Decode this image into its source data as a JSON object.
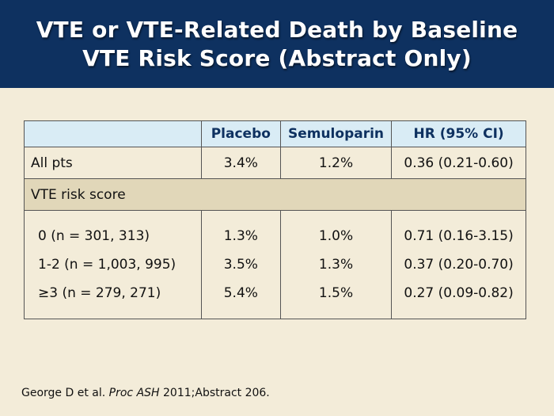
{
  "title": {
    "line1": "VTE or VTE-Related Death by Baseline",
    "line2": "VTE Risk Score (Abstract Only)"
  },
  "table": {
    "headers": [
      "",
      "Placebo",
      "Semuloparin",
      "HR (95% CI)"
    ],
    "all_pts": {
      "label": "All pts",
      "placebo": "3.4%",
      "semuloparin": "1.2%",
      "hr": "0.36 (0.21-0.60)"
    },
    "section_label": "VTE risk score",
    "subgroups": [
      {
        "label": "0 (n = 301, 313)",
        "placebo": "1.3%",
        "semuloparin": "1.0%",
        "hr": "0.71 (0.16-3.15)"
      },
      {
        "label": "1-2 (n = 1,003, 995)",
        "placebo": "3.5%",
        "semuloparin": "1.3%",
        "hr": "0.37 (0.20-0.70)"
      },
      {
        "label": "≥3 (n = 279, 271)",
        "placebo": "5.4%",
        "semuloparin": "1.5%",
        "hr": "0.27 (0.09-0.82)"
      }
    ]
  },
  "citation": {
    "authors": "George D et al.",
    "journal": "Proc ASH",
    "details": "2011;Abstract 206."
  },
  "colors": {
    "title_bg": "#0e3160",
    "page_bg": "#f3ecd9",
    "header_bg": "#d9ecf5",
    "section_bg": "#e1d7b9"
  }
}
